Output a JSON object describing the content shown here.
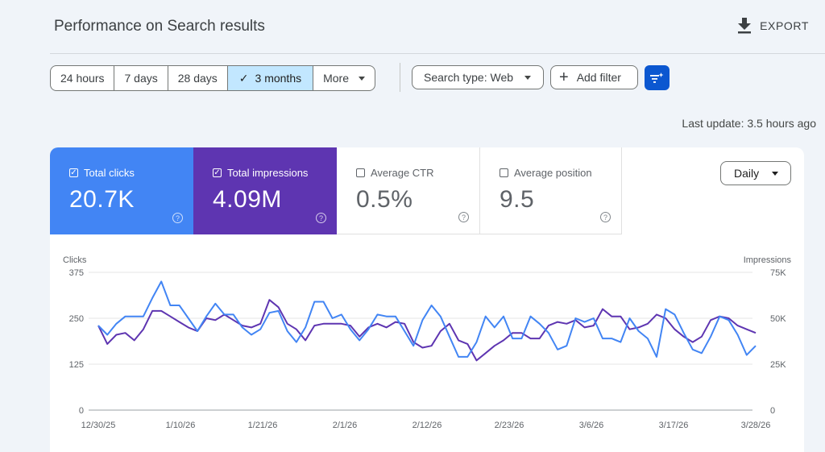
{
  "header": {
    "title": "Performance on Search results",
    "export_label": "EXPORT"
  },
  "date_range": {
    "options": [
      "24 hours",
      "7 days",
      "28 days",
      "3 months",
      "More"
    ],
    "selected": "3 months"
  },
  "filters": {
    "search_type": "Search type: Web",
    "add_filter": "Add filter"
  },
  "last_update": "Last update: 3.5 hours ago",
  "metrics": {
    "clicks": {
      "label": "Total clicks",
      "value": "20.7K",
      "checked": true,
      "color": "#4285f4"
    },
    "impressions": {
      "label": "Total impressions",
      "value": "4.09M",
      "checked": true,
      "color": "#5e35b1"
    },
    "ctr": {
      "label": "Average CTR",
      "value": "0.5%",
      "checked": false
    },
    "position": {
      "label": "Average position",
      "value": "9.5",
      "checked": false
    }
  },
  "granularity": "Daily",
  "chart_data": {
    "type": "line",
    "ylabel_left": "Clicks",
    "ylabel_right": "Impressions",
    "y_left_ticks": [
      "375",
      "250",
      "125",
      "0"
    ],
    "y_right_ticks": [
      "75K",
      "50K",
      "25K",
      "0"
    ],
    "y_left_range": [
      0,
      375
    ],
    "y_right_range": [
      0,
      75000
    ],
    "x_tick_labels": [
      "12/30/25",
      "1/10/26",
      "1/21/26",
      "2/1/26",
      "2/12/26",
      "2/23/26",
      "3/6/26",
      "3/17/26",
      "3/28/26"
    ],
    "grid": true,
    "series": [
      {
        "name": "Clicks",
        "axis": "left",
        "color": "#4285f4",
        "values": [
          230,
          205,
          235,
          255,
          255,
          255,
          305,
          350,
          285,
          285,
          250,
          215,
          255,
          290,
          260,
          260,
          225,
          205,
          220,
          265,
          270,
          215,
          185,
          225,
          295,
          295,
          250,
          260,
          220,
          190,
          220,
          260,
          255,
          255,
          215,
          175,
          245,
          285,
          255,
          200,
          145,
          145,
          185,
          255,
          225,
          255,
          195,
          195,
          255,
          235,
          210,
          165,
          175,
          250,
          240,
          250,
          195,
          195,
          185,
          250,
          215,
          195,
          145,
          275,
          260,
          210,
          165,
          155,
          200,
          255,
          245,
          205,
          150,
          175
        ]
      },
      {
        "name": "Impressions",
        "axis": "right",
        "color": "#5e35b1",
        "values": [
          46000,
          36000,
          41000,
          42000,
          38000,
          44000,
          54000,
          54000,
          51000,
          48000,
          45000,
          43000,
          50000,
          49000,
          52000,
          49000,
          46000,
          45000,
          47000,
          60000,
          56000,
          47000,
          44000,
          38000,
          46000,
          47000,
          47000,
          47000,
          46000,
          40000,
          45000,
          47000,
          45000,
          48000,
          47000,
          37000,
          34000,
          35000,
          43000,
          47000,
          38000,
          36000,
          27000,
          31000,
          35000,
          38000,
          42000,
          42000,
          39000,
          39000,
          46000,
          48000,
          47000,
          49000,
          45000,
          46000,
          55000,
          51000,
          51000,
          44000,
          45000,
          47000,
          52000,
          50000,
          44000,
          40000,
          37000,
          40000,
          49000,
          51000,
          50000,
          46000,
          44000,
          42000
        ]
      }
    ]
  }
}
